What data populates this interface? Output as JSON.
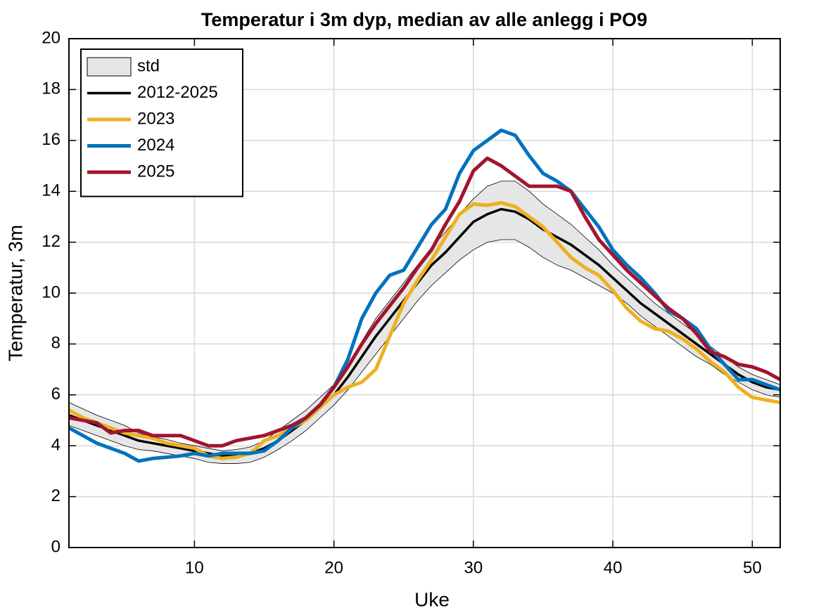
{
  "chart_data": {
    "type": "line",
    "title": "Temperatur i 3m dyp, median av alle anlegg i PO9",
    "x_label": "Uke",
    "y_label": "Temperatur, 3m",
    "xlim": [
      1,
      52
    ],
    "xticks": [
      10,
      20,
      30,
      40,
      50
    ],
    "ylim": [
      0,
      20
    ],
    "yticks": [
      0,
      2,
      4,
      6,
      8,
      10,
      12,
      14,
      16,
      18,
      20
    ],
    "grid": true,
    "legend": "upper-left",
    "x": [
      1,
      2,
      3,
      4,
      5,
      6,
      7,
      8,
      9,
      10,
      11,
      12,
      13,
      14,
      15,
      16,
      17,
      18,
      19,
      20,
      21,
      22,
      23,
      24,
      25,
      26,
      27,
      28,
      29,
      30,
      31,
      32,
      33,
      34,
      35,
      36,
      37,
      38,
      39,
      40,
      41,
      42,
      43,
      44,
      45,
      46,
      47,
      48,
      49,
      50,
      51,
      52
    ],
    "series": [
      {
        "name": "std",
        "color": "#e6e6e6",
        "upper": [
          5.7,
          5.45,
          5.2,
          5.0,
          4.8,
          4.5,
          4.35,
          4.25,
          4.1,
          4.0,
          3.9,
          3.8,
          3.85,
          3.95,
          4.2,
          4.6,
          5.0,
          5.4,
          5.9,
          6.4,
          7.2,
          8.1,
          9.0,
          9.7,
          10.4,
          11.1,
          11.8,
          12.4,
          13.1,
          13.7,
          14.2,
          14.4,
          14.4,
          14.0,
          13.5,
          13.1,
          12.7,
          12.2,
          11.7,
          11.1,
          10.6,
          10.1,
          9.6,
          9.2,
          8.8,
          8.4,
          7.9,
          7.5,
          7.1,
          6.8,
          6.6,
          6.4
        ],
        "lower": [
          4.8,
          4.6,
          4.4,
          4.2,
          4.0,
          3.85,
          3.8,
          3.7,
          3.6,
          3.5,
          3.35,
          3.3,
          3.3,
          3.35,
          3.55,
          3.85,
          4.2,
          4.6,
          5.1,
          5.6,
          6.2,
          6.9,
          7.6,
          8.3,
          9.0,
          9.7,
          10.3,
          10.8,
          11.3,
          11.7,
          12.0,
          12.1,
          12.1,
          11.8,
          11.4,
          11.1,
          10.9,
          10.6,
          10.3,
          10.0,
          9.6,
          9.1,
          8.7,
          8.3,
          7.9,
          7.5,
          7.2,
          6.8,
          6.5,
          6.2,
          6.0,
          5.9
        ]
      },
      {
        "name": "2012-2025",
        "color": "#000000",
        "values": [
          5.2,
          5.0,
          4.8,
          4.6,
          4.4,
          4.2,
          4.1,
          4.0,
          3.9,
          3.8,
          3.7,
          3.6,
          3.65,
          3.7,
          3.9,
          4.2,
          4.6,
          5.0,
          5.5,
          6.0,
          6.7,
          7.5,
          8.3,
          9.0,
          9.7,
          10.4,
          11.1,
          11.6,
          12.2,
          12.8,
          13.1,
          13.3,
          13.2,
          12.9,
          12.5,
          12.2,
          11.9,
          11.5,
          11.1,
          10.6,
          10.1,
          9.6,
          9.2,
          8.8,
          8.4,
          8.0,
          7.6,
          7.2,
          6.8,
          6.5,
          6.3,
          6.2
        ]
      },
      {
        "name": "2023",
        "color": "#edb120",
        "values": [
          5.4,
          5.1,
          4.9,
          4.7,
          4.5,
          4.4,
          4.3,
          4.1,
          4.0,
          3.9,
          3.6,
          3.5,
          3.55,
          3.7,
          4.2,
          4.4,
          4.7,
          5.0,
          5.5,
          6.0,
          6.3,
          6.5,
          7.0,
          8.3,
          9.6,
          10.5,
          11.3,
          12.2,
          13.1,
          13.5,
          13.45,
          13.55,
          13.4,
          13.0,
          12.6,
          12.0,
          11.4,
          11.0,
          10.7,
          10.1,
          9.4,
          8.9,
          8.6,
          8.5,
          8.2,
          7.8,
          7.3,
          6.9,
          6.3,
          5.9,
          5.8,
          5.7
        ]
      },
      {
        "name": "2024",
        "color": "#0072bd",
        "values": [
          4.7,
          4.4,
          4.1,
          3.9,
          3.7,
          3.4,
          3.5,
          3.55,
          3.6,
          3.7,
          3.6,
          3.7,
          3.7,
          3.7,
          3.8,
          4.2,
          4.7,
          5.1,
          5.6,
          6.3,
          7.4,
          9.0,
          10.0,
          10.7,
          10.9,
          11.8,
          12.7,
          13.3,
          14.7,
          15.6,
          16.0,
          16.4,
          16.2,
          15.4,
          14.7,
          14.4,
          14.0,
          13.3,
          12.6,
          11.7,
          11.1,
          10.6,
          10.0,
          9.3,
          9.0,
          8.6,
          7.8,
          7.2,
          6.6,
          6.6,
          6.4,
          6.2
        ]
      },
      {
        "name": "2025",
        "color": "#a2142f",
        "values": [
          5.1,
          5.0,
          4.9,
          4.5,
          4.6,
          4.6,
          4.4,
          4.4,
          4.4,
          4.2,
          4.0,
          4.0,
          4.2,
          4.3,
          4.4,
          4.6,
          4.8,
          5.1,
          5.6,
          6.3,
          7.1,
          8.0,
          8.8,
          9.5,
          10.2,
          11.0,
          11.7,
          12.7,
          13.6,
          14.8,
          15.3,
          15.0,
          14.6,
          14.2,
          14.2,
          14.2,
          14.0,
          13.0,
          12.1,
          11.5,
          10.9,
          10.4,
          9.9,
          9.4,
          9.0,
          8.4,
          7.7,
          7.5,
          7.2,
          7.1,
          6.9,
          6.6
        ]
      }
    ]
  }
}
